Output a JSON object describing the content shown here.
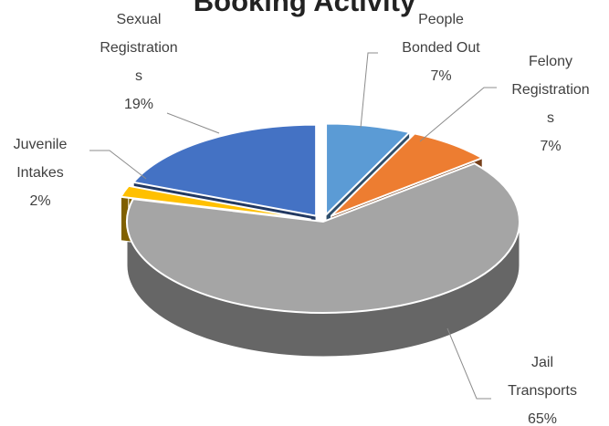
{
  "chart_data": {
    "type": "pie",
    "title": "Booking Activity",
    "three_d": true,
    "legend": "none",
    "slices": [
      {
        "label_lines": [
          "People",
          "Bonded Out",
          "7%"
        ],
        "value": 7,
        "color": "#5b9bd5"
      },
      {
        "label_lines": [
          "Felony",
          "Registration",
          "s",
          "7%"
        ],
        "value": 7,
        "color": "#ed7d31"
      },
      {
        "label_lines": [
          "Jail",
          "Transports",
          "65%"
        ],
        "value": 65,
        "color": "#a5a5a5"
      },
      {
        "label_lines": [
          "Juvenile",
          "Intakes",
          "2%"
        ],
        "value": 2,
        "color": "#ffc000"
      },
      {
        "label_lines": [
          "Sexual",
          "Registration",
          "s",
          "19%"
        ],
        "value": 19,
        "color": "#4472c4"
      }
    ]
  }
}
